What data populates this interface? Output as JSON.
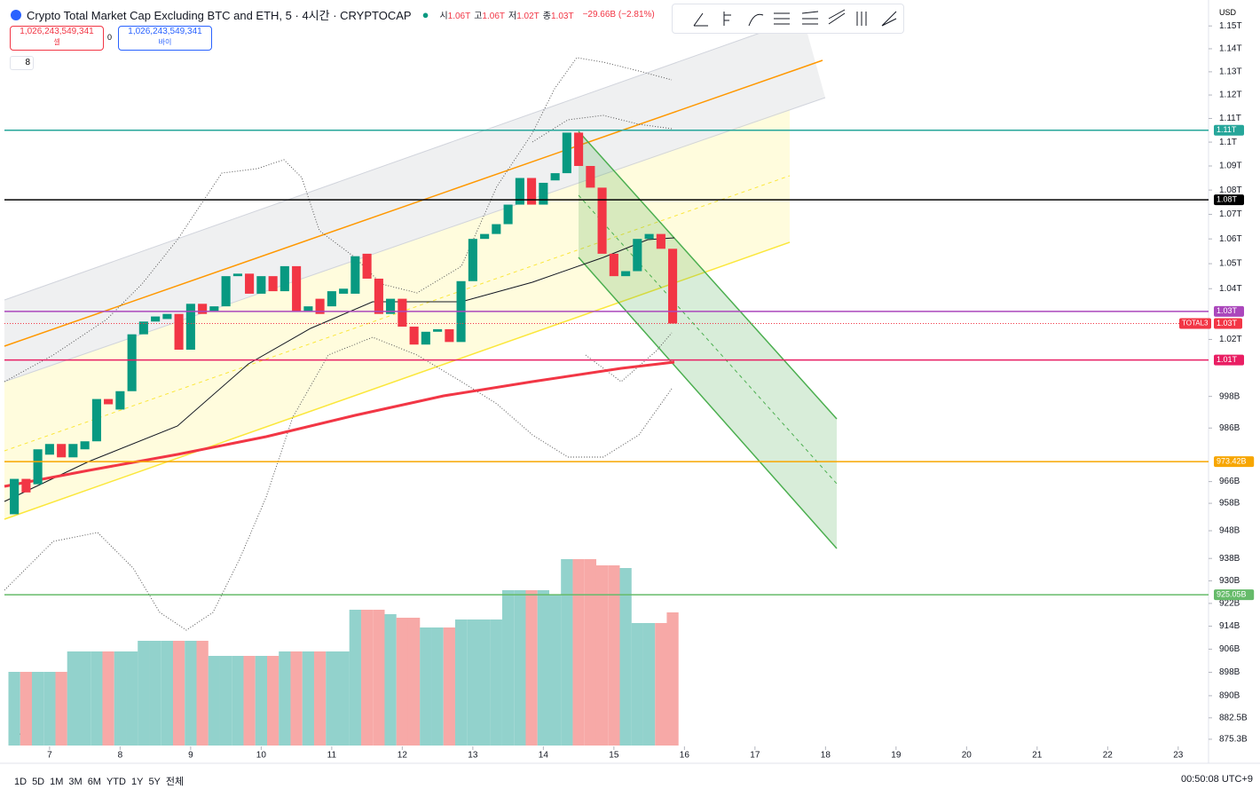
{
  "header": {
    "title": "Crypto Total Market Cap Excluding BTC and ETH, 5 · 4시간 · CRYPTOCAP",
    "ohlc": [
      {
        "label": "시",
        "value": "1.06T"
      },
      {
        "label": "고",
        "value": "1.06T"
      },
      {
        "label": "저",
        "value": "1.02T"
      },
      {
        "label": "종",
        "value": "1.03T"
      }
    ],
    "change": "−29.66B (−2.81%)",
    "sell": {
      "price": "1,026,243,549,341",
      "label": "셀"
    },
    "spread": "0",
    "buy": {
      "price": "1,026,243,549,341",
      "label": "바이"
    },
    "indicators": "8",
    "currency": "USD"
  },
  "chart_data": {
    "type": "candlestick",
    "log_scale": true,
    "x": [
      6.5,
      6.667,
      6.833,
      7,
      7.167,
      7.333,
      7.5,
      7.667,
      7.833,
      8,
      8.167,
      8.333,
      8.5,
      8.667,
      8.833,
      9,
      9.167,
      9.333,
      9.5,
      9.667,
      9.833,
      10,
      10.167,
      10.333,
      10.5,
      10.667,
      10.833,
      11,
      11.167,
      11.333,
      11.5,
      11.667,
      11.833,
      12,
      12.167,
      12.333,
      12.5,
      12.667,
      12.833,
      13,
      13.167,
      13.333,
      13.5,
      13.667,
      13.833,
      14,
      14.167,
      14.333,
      14.5,
      14.667,
      14.833,
      15,
      15.167,
      15.333,
      15.5,
      15.667,
      15.833
    ],
    "open": [
      954,
      967,
      965,
      976,
      980,
      975,
      978,
      981,
      997,
      993,
      1000,
      1022,
      1027,
      1028,
      1030,
      1016,
      1034,
      1031,
      1033,
      1045,
      1046,
      1038,
      1045,
      1039,
      1049,
      1031,
      1036,
      1033,
      1038,
      1038,
      1054,
      1044,
      1030,
      1036,
      1025,
      1018,
      1023,
      1024,
      1019,
      1043,
      1060,
      1062,
      1066,
      1074,
      1085,
      1074,
      1084,
      1087,
      1104,
      1090,
      1081,
      1054,
      1045,
      1047,
      1060,
      1062,
      1056
    ],
    "close": [
      967,
      962,
      978,
      980,
      975,
      980,
      981,
      997,
      995,
      1000,
      1022,
      1027,
      1029,
      1030,
      1016,
      1034,
      1030,
      1033,
      1045,
      1046,
      1038,
      1045,
      1039,
      1049,
      1031,
      1033,
      1030,
      1039,
      1040,
      1053,
      1044,
      1030,
      1036,
      1025,
      1018,
      1023,
      1024,
      1019,
      1043,
      1060,
      1062,
      1066,
      1074,
      1085,
      1074,
      1083,
      1087,
      1104,
      1090,
      1081,
      1054,
      1045,
      1047,
      1060,
      1062,
      1056,
      1026.24
    ],
    "volume": [
      83,
      83,
      83,
      83,
      83,
      106,
      106,
      106,
      106,
      106,
      106,
      118,
      118,
      118,
      118,
      118,
      118,
      101,
      101,
      101,
      101,
      101,
      101,
      106,
      106,
      106,
      106,
      106,
      106,
      153,
      153,
      153,
      148,
      144,
      144,
      133,
      133,
      133,
      142,
      142,
      142,
      142,
      175,
      175,
      175,
      175,
      170,
      210,
      210,
      210,
      203,
      203,
      200,
      138,
      138,
      138,
      150
    ],
    "up_color": "#089981",
    "down_color": "#f23645",
    "up_volume_color": "#92d2cc",
    "down_volume_color": "#f7a9a7",
    "xlim": [
      6.36,
      23.43
    ],
    "xticks": [
      7,
      8,
      9,
      10,
      11,
      12,
      13,
      14,
      15,
      16,
      17,
      18,
      19,
      20,
      21,
      22,
      23
    ],
    "ylim": [
      873.2,
      1159.5
    ],
    "yticks": [
      {
        "value": 1150,
        "label": "1.15T"
      },
      {
        "value": 1140,
        "label": "1.14T"
      },
      {
        "value": 1130,
        "label": "1.13T"
      },
      {
        "value": 1120,
        "label": "1.12T"
      },
      {
        "value": 1110,
        "label": "1.11T"
      },
      {
        "value": 1100,
        "label": "1.1T"
      },
      {
        "value": 1090,
        "label": "1.09T"
      },
      {
        "value": 1080,
        "label": "1.08T"
      },
      {
        "value": 1070,
        "label": "1.07T"
      },
      {
        "value": 1060,
        "label": "1.06T"
      },
      {
        "value": 1050,
        "label": "1.05T"
      },
      {
        "value": 1040,
        "label": "1.04T"
      },
      {
        "value": 1020,
        "label": "1.02T"
      },
      {
        "value": 998,
        "label": "998B"
      },
      {
        "value": 986,
        "label": "986B"
      },
      {
        "value": 966,
        "label": "966B"
      },
      {
        "value": 958,
        "label": "958B"
      },
      {
        "value": 948,
        "label": "948B"
      },
      {
        "value": 938,
        "label": "938B"
      },
      {
        "value": 930,
        "label": "930B"
      },
      {
        "value": 922,
        "label": "922B"
      },
      {
        "value": 914,
        "label": "914B"
      },
      {
        "value": 906,
        "label": "906B"
      },
      {
        "value": 898,
        "label": "898B"
      },
      {
        "value": 890,
        "label": "890B"
      },
      {
        "value": 882.5,
        "label": "882.5B"
      },
      {
        "value": 875.3,
        "label": "875.3B"
      }
    ],
    "price_lines": [
      {
        "value": 1105,
        "label": "1.11T",
        "color": "#26a69a"
      },
      {
        "value": 1076,
        "label": "1.08T",
        "color": "#000000"
      },
      {
        "value": 1031,
        "label": "1.03T",
        "color": "#ab47bc"
      },
      {
        "value": 1012,
        "label": "1.01T",
        "color": "#e91e63"
      },
      {
        "value": 973.42,
        "label": "973.42B",
        "color": "#f7a600"
      },
      {
        "value": 925.05,
        "label": "925.05B",
        "color": "#66bb6a"
      }
    ],
    "last_price": {
      "name": "TOTAL3",
      "value": 1026.24,
      "label": "1.03T",
      "color": "#f23645"
    }
  },
  "footer": {
    "ranges": [
      "1D",
      "5D",
      "1M",
      "3M",
      "6M",
      "YTD",
      "1Y",
      "5Y",
      "전체"
    ],
    "clock": "00:50:08 UTC+9"
  }
}
